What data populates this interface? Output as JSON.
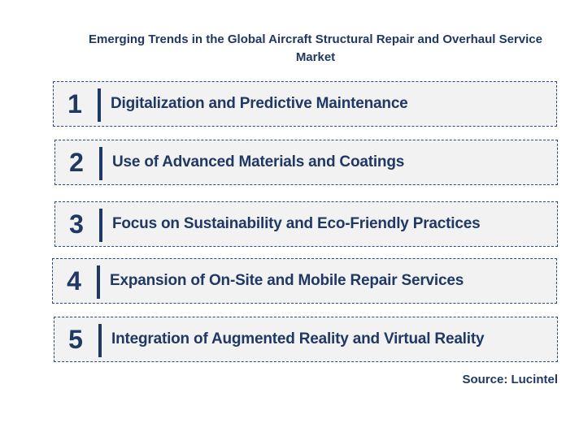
{
  "title": "Emerging Trends in the Global Aircraft Structural Repair and Overhaul Service Market",
  "trends": [
    {
      "number": "1",
      "label": "Digitalization and Predictive Maintenance"
    },
    {
      "number": "2",
      "label": "Use of Advanced Materials and Coatings"
    },
    {
      "number": "3",
      "label": "Focus on Sustainability and Eco-Friendly Practices"
    },
    {
      "number": "4",
      "label": "Expansion of On-Site and Mobile Repair Services"
    },
    {
      "number": "5",
      "label": "Integration of Augmented Reality and Virtual Reality"
    }
  ],
  "source": "Source: Lucintel",
  "colors": {
    "text": "#1f3864",
    "box_fill": "#f2f2f2",
    "box_border": "#2e4a7a"
  }
}
